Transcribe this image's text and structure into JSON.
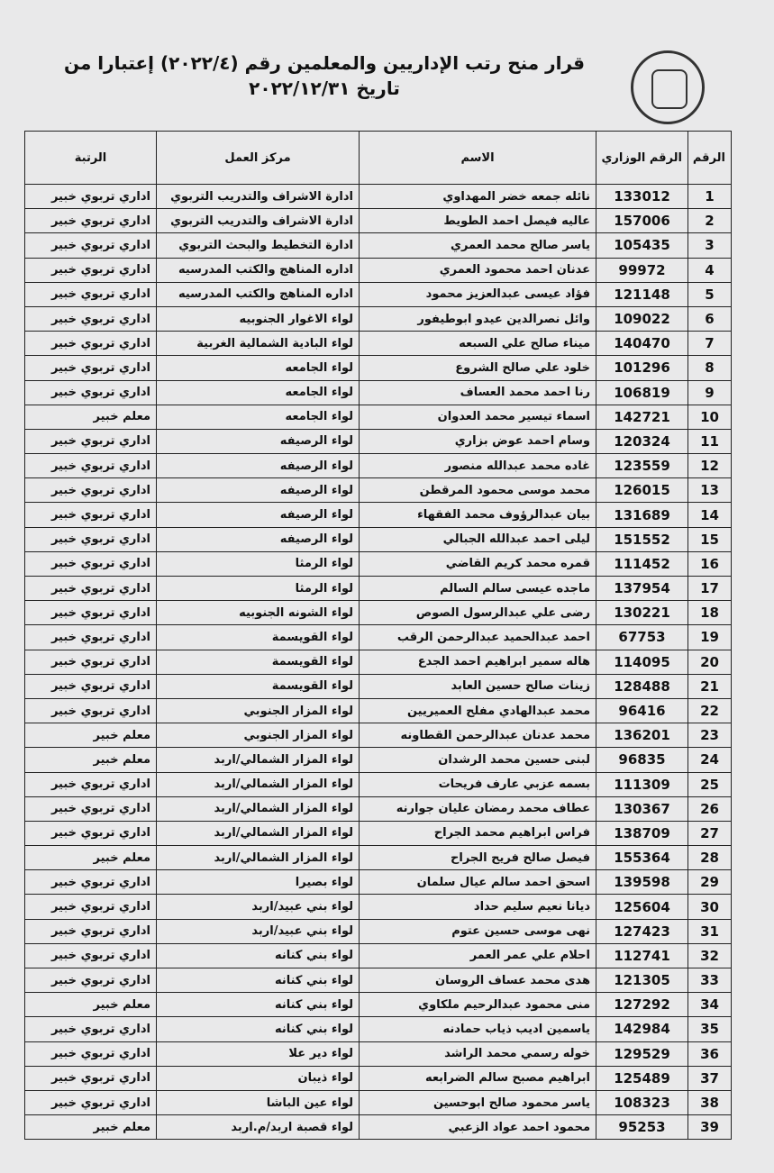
{
  "header": {
    "title_line1": "قرار منح رتب الإداريين والمعلمين رقم (٢٠٢٢/٤) إعتبارا من",
    "title_line2": "تاريخ ٢٠٢٢/١٢/٣١"
  },
  "table": {
    "columns": [
      "الرقم",
      "الرقم الوزاري",
      "الاسم",
      "مركز العمل",
      "الرتبة"
    ],
    "rows": [
      [
        1,
        133012,
        "نائله جمعه خضر المهداوي",
        "ادارة الاشراف والتدريب التربوي",
        "اداري تربوي خبير"
      ],
      [
        2,
        157006,
        "عاليه فيصل احمد الطويط",
        "ادارة الاشراف والتدريب التربوي",
        "اداري تربوي خبير"
      ],
      [
        3,
        105435,
        "ياسر صالح محمد العمري",
        "ادارة التخطيط والبحث التربوي",
        "اداري تربوي خبير"
      ],
      [
        4,
        99972,
        "عدنان احمد محمود العمري",
        "اداره المناهج والكتب المدرسيه",
        "اداري تربوي خبير"
      ],
      [
        5,
        121148,
        "فؤاد عيسى عبدالعزيز محمود",
        "اداره المناهج والكتب المدرسيه",
        "اداري تربوي خبير"
      ],
      [
        6,
        109022,
        "وائل نصرالدين عيدو ابوطيفور",
        "لواء الاغوار الجنوبيه",
        "اداري تربوي خبير"
      ],
      [
        7,
        140470,
        "ميناء صالح علي السبعه",
        "لواء البادية الشمالية الغربية",
        "اداري تربوي خبير"
      ],
      [
        8,
        101296,
        "خلود علي صالح الشروع",
        "لواء الجامعه",
        "اداري تربوي خبير"
      ],
      [
        9,
        106819,
        "رنا احمد محمد العساف",
        "لواء الجامعه",
        "اداري تربوي خبير"
      ],
      [
        10,
        142721,
        "اسماء تيسير محمد العدوان",
        "لواء الجامعه",
        "معلم خبير"
      ],
      [
        11,
        120324,
        "وسام احمد عوض بزاري",
        "لواء الرصيفه",
        "اداري تربوي خبير"
      ],
      [
        12,
        123559,
        "غاده محمد عبدالله منصور",
        "لواء الرصيفه",
        "اداري تربوي خبير"
      ],
      [
        13,
        126015,
        "محمد موسى محمود المرقطن",
        "لواء الرصيفه",
        "اداري تربوي خبير"
      ],
      [
        14,
        131689,
        "بيان عبدالرؤوف محمد الفقهاء",
        "لواء الرصيفه",
        "اداري تربوي خبير"
      ],
      [
        15,
        151552,
        "ليلى احمد عبدالله الجبالي",
        "لواء الرصيفه",
        "اداري تربوي خبير"
      ],
      [
        16,
        111452,
        "قمره محمد كريم القاضي",
        "لواء الرمثا",
        "اداري تربوي خبير"
      ],
      [
        17,
        137954,
        "ماجده عيسى سالم السالم",
        "لواء الرمثا",
        "اداري تربوي خبير"
      ],
      [
        18,
        130221,
        "رضى علي عبدالرسول الصوص",
        "لواء الشونه الجنوبيه",
        "اداري تربوي خبير"
      ],
      [
        19,
        67753,
        "احمد عبدالحميد عبدالرحمن الرقب",
        "لواء القويسمة",
        "اداري تربوي خبير"
      ],
      [
        20,
        114095,
        "هاله سمير ابراهيم احمد الجدع",
        "لواء القويسمة",
        "اداري تربوي خبير"
      ],
      [
        21,
        128488,
        "زينات صالح حسين العابد",
        "لواء القويسمة",
        "اداري تربوي خبير"
      ],
      [
        22,
        96416,
        "محمد عبدالهادي مفلح العميريين",
        "لواء المزار الجنوبي",
        "اداري تربوي خبير"
      ],
      [
        23,
        136201,
        "محمد عدنان عبدالرحمن القطاونه",
        "لواء المزار الجنوبي",
        "معلم خبير"
      ],
      [
        24,
        96835,
        "لبنى حسين محمد الرشدان",
        "لواء المزار الشمالي/اربد",
        "معلم خبير"
      ],
      [
        25,
        111309,
        "بسمه عزبي عارف فريحات",
        "لواء المزار الشمالي/اربد",
        "اداري تربوي خبير"
      ],
      [
        26,
        130367,
        "عطاف محمد رمضان عليان جوارنه",
        "لواء المزار الشمالي/اربد",
        "اداري تربوي خبير"
      ],
      [
        27,
        138709,
        "فراس ابراهيم محمد الجراح",
        "لواء المزار الشمالي/اربد",
        "اداري تربوي خبير"
      ],
      [
        28,
        155364,
        "فيصل صالح فريح الجراح",
        "لواء المزار الشمالي/اربد",
        "معلم خبير"
      ],
      [
        29,
        139598,
        "اسحق احمد سالم عيال سلمان",
        "لواء بصيرا",
        "اداري تربوي خبير"
      ],
      [
        30,
        125604,
        "ديانا نعيم سليم حداد",
        "لواء بني عبيد/اربد",
        "اداري تربوي خبير"
      ],
      [
        31,
        127423,
        "نهى موسى حسين عتوم",
        "لواء بني عبيد/اربد",
        "اداري تربوي خبير"
      ],
      [
        32,
        112741,
        "احلام علي عمر العمر",
        "لواء بني كنانه",
        "اداري تربوي خبير"
      ],
      [
        33,
        121305,
        "هدى محمد عساف الروسان",
        "لواء بني كنانه",
        "اداري تربوي خبير"
      ],
      [
        34,
        127292,
        "منى محمود عبدالرحيم ملكاوي",
        "لواء بني كنانه",
        "معلم خبير"
      ],
      [
        35,
        142984,
        "ياسمين اديب ذياب حمادنه",
        "لواء بني كنانه",
        "اداري تربوي خبير"
      ],
      [
        36,
        129529,
        "خوله رسمي محمد الراشد",
        "لواء دير علا",
        "اداري تربوي خبير"
      ],
      [
        37,
        125489,
        "ابراهيم مصبح سالم الضرابعه",
        "لواء ذيبان",
        "اداري تربوي خبير"
      ],
      [
        38,
        108323,
        "ياسر محمود صالح ابوحسين",
        "لواء عين الباشا",
        "اداري تربوي خبير"
      ],
      [
        39,
        95253,
        "محمود احمد عواد الزعبي",
        "لواء قصبة اربد/م.اربد",
        "معلم خبير"
      ]
    ]
  }
}
